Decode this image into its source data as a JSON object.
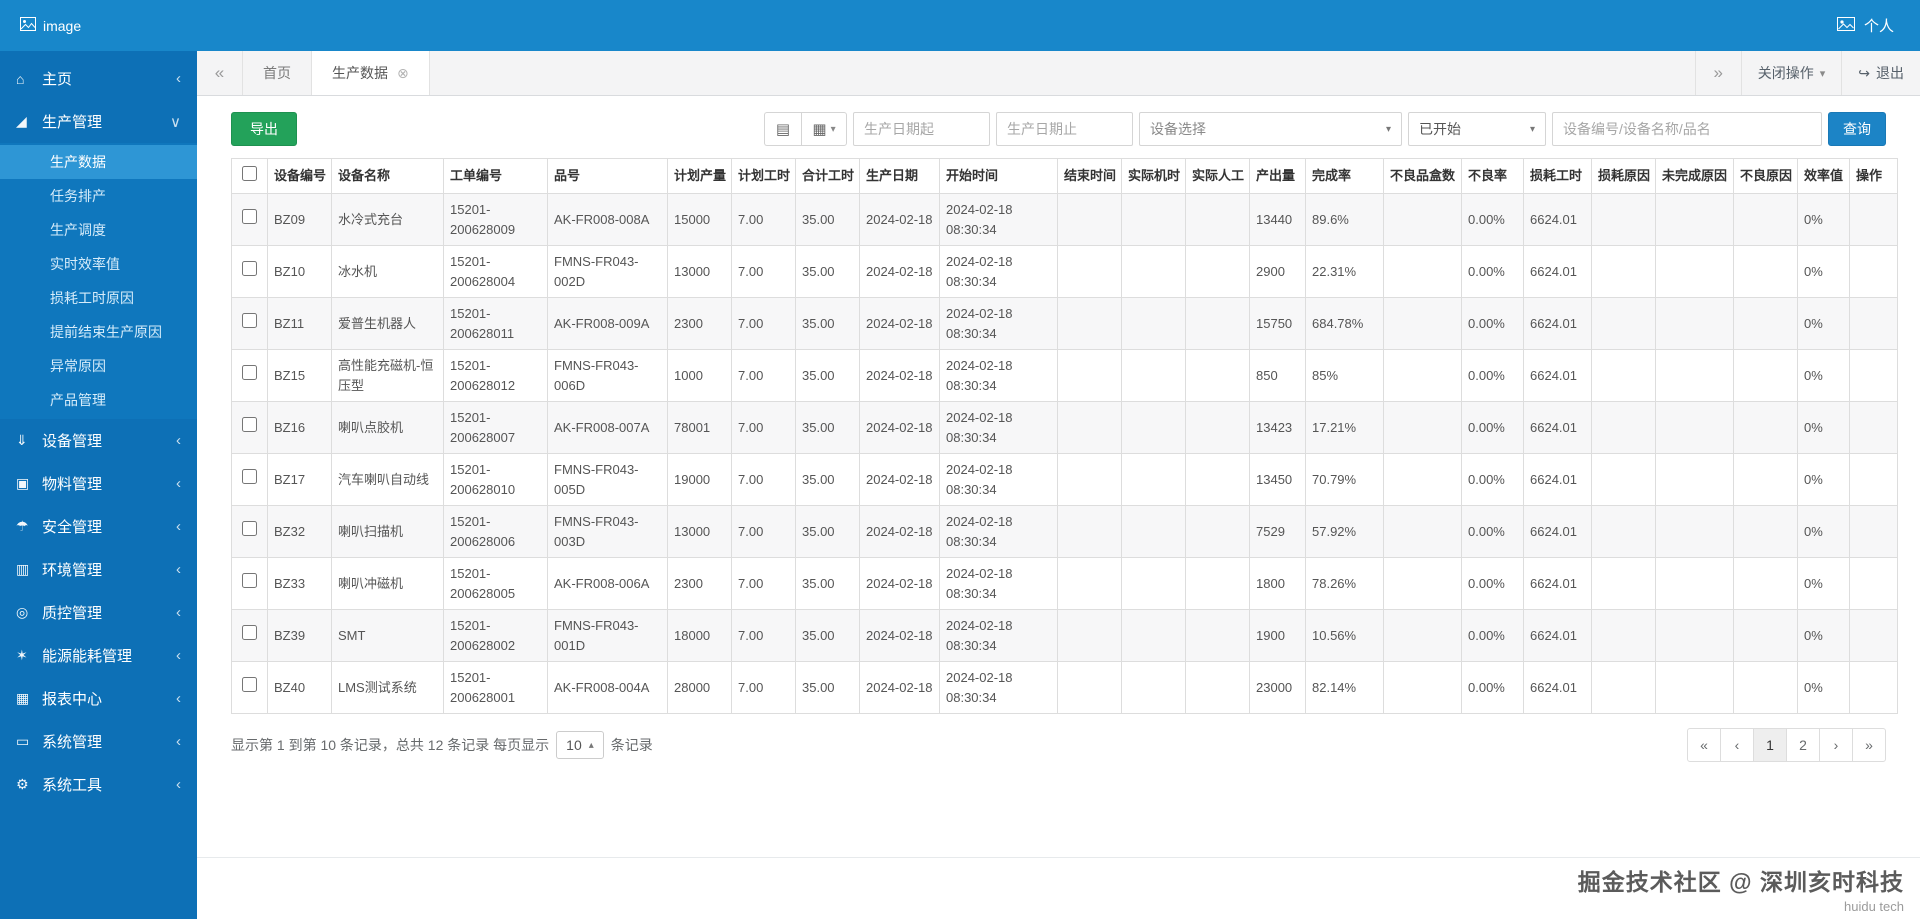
{
  "topbar": {
    "logo_alt": "image",
    "user_label": "个人"
  },
  "tabbar": {
    "back_glyph": "«",
    "forward_glyph": "»",
    "tabs": [
      {
        "key": "home",
        "label": "首页",
        "active": false,
        "closable": false
      },
      {
        "key": "production-data",
        "label": "生产数据",
        "active": true,
        "closable": true,
        "close_glyph": "⊗"
      }
    ],
    "close_menu_label": "关闭操作",
    "close_menu_caret": "▾",
    "exit_glyph": "↪",
    "exit_label": "退出"
  },
  "sidebar": {
    "collapsed_caret": "‹",
    "expanded_caret": "∨",
    "items": [
      {
        "key": "home",
        "icon": "home-icon",
        "label": "主页",
        "expanded": false
      },
      {
        "key": "production",
        "icon": "production-chart-icon",
        "label": "生产管理",
        "expanded": true,
        "active_child": "生产数据",
        "children": [
          "生产数据",
          "任务排产",
          "生产调度",
          "实时效率值",
          "损耗工时原因",
          "提前结束生产原因",
          "异常原因",
          "产品管理"
        ]
      },
      {
        "key": "equipment",
        "icon": "equipment-icon",
        "label": "设备管理",
        "expanded": false
      },
      {
        "key": "material",
        "icon": "material-icon",
        "label": "物料管理",
        "expanded": false
      },
      {
        "key": "safety",
        "icon": "safety-icon",
        "label": "安全管理",
        "expanded": false
      },
      {
        "key": "environment",
        "icon": "environment-icon",
        "label": "环境管理",
        "expanded": false
      },
      {
        "key": "quality",
        "icon": "quality-icon",
        "label": "质控管理",
        "expanded": false
      },
      {
        "key": "energy",
        "icon": "energy-icon",
        "label": "能源能耗管理",
        "expanded": false
      },
      {
        "key": "reports",
        "icon": "report-icon",
        "label": "报表中心",
        "expanded": false
      },
      {
        "key": "system",
        "icon": "system-icon",
        "label": "系统管理",
        "expanded": false
      },
      {
        "key": "tools",
        "icon": "tools-icon",
        "label": "系统工具",
        "expanded": false
      }
    ]
  },
  "toolbar": {
    "export_label": "导出",
    "list_view_glyph": "▤",
    "grid_view_glyph": "▦",
    "grid_view_caret": "▾",
    "date_start_placeholder": "生产日期起",
    "date_end_placeholder": "生产日期止",
    "device_select_value": "设备选择",
    "status_select_value": "已开始",
    "select_caret": "▾",
    "search_placeholder": "设备编号/设备名称/品名",
    "query_label": "查询"
  },
  "table": {
    "columns": [
      "设备编号",
      "设备名称",
      "工单编号",
      "品号",
      "计划产量",
      "计划工时",
      "合计工时",
      "生产日期",
      "开始时间",
      "结束时间",
      "实际机时",
      "实际人工",
      "产出量",
      "完成率",
      "不良品盒数",
      "不良率",
      "损耗工时",
      "损耗原因",
      "未完成原因",
      "不良原因",
      "效率值",
      "操作"
    ],
    "rows": [
      [
        "BZ09",
        "水冷式充台",
        "15201-200628009",
        "AK-FR008-008A",
        "15000",
        "7.00",
        "35.00",
        "2024-02-18",
        "2024-02-18 08:30:34",
        "",
        "",
        "",
        "13440",
        "89.6%",
        "",
        "0.00%",
        "6624.01",
        "",
        "",
        "",
        "0%",
        ""
      ],
      [
        "BZ10",
        "冰水机",
        "15201-200628004",
        "FMNS-FR043-002D",
        "13000",
        "7.00",
        "35.00",
        "2024-02-18",
        "2024-02-18 08:30:34",
        "",
        "",
        "",
        "2900",
        "22.31%",
        "",
        "0.00%",
        "6624.01",
        "",
        "",
        "",
        "0%",
        ""
      ],
      [
        "BZ11",
        "爱普生机器人",
        "15201-200628011",
        "AK-FR008-009A",
        "2300",
        "7.00",
        "35.00",
        "2024-02-18",
        "2024-02-18 08:30:34",
        "",
        "",
        "",
        "15750",
        "684.78%",
        "",
        "0.00%",
        "6624.01",
        "",
        "",
        "",
        "0%",
        ""
      ],
      [
        "BZ15",
        "高性能充磁机-恒压型",
        "15201-200628012",
        "FMNS-FR043-006D",
        "1000",
        "7.00",
        "35.00",
        "2024-02-18",
        "2024-02-18 08:30:34",
        "",
        "",
        "",
        "850",
        "85%",
        "",
        "0.00%",
        "6624.01",
        "",
        "",
        "",
        "0%",
        ""
      ],
      [
        "BZ16",
        "喇叭点胶机",
        "15201-200628007",
        "AK-FR008-007A",
        "78001",
        "7.00",
        "35.00",
        "2024-02-18",
        "2024-02-18 08:30:34",
        "",
        "",
        "",
        "13423",
        "17.21%",
        "",
        "0.00%",
        "6624.01",
        "",
        "",
        "",
        "0%",
        ""
      ],
      [
        "BZ17",
        "汽车喇叭自动线",
        "15201-200628010",
        "FMNS-FR043-005D",
        "19000",
        "7.00",
        "35.00",
        "2024-02-18",
        "2024-02-18 08:30:34",
        "",
        "",
        "",
        "13450",
        "70.79%",
        "",
        "0.00%",
        "6624.01",
        "",
        "",
        "",
        "0%",
        ""
      ],
      [
        "BZ32",
        "喇叭扫描机",
        "15201-200628006",
        "FMNS-FR043-003D",
        "13000",
        "7.00",
        "35.00",
        "2024-02-18",
        "2024-02-18 08:30:34",
        "",
        "",
        "",
        "7529",
        "57.92%",
        "",
        "0.00%",
        "6624.01",
        "",
        "",
        "",
        "0%",
        ""
      ],
      [
        "BZ33",
        "喇叭冲磁机",
        "15201-200628005",
        "AK-FR008-006A",
        "2300",
        "7.00",
        "35.00",
        "2024-02-18",
        "2024-02-18 08:30:34",
        "",
        "",
        "",
        "1800",
        "78.26%",
        "",
        "0.00%",
        "6624.01",
        "",
        "",
        "",
        "0%",
        ""
      ],
      [
        "BZ39",
        "SMT",
        "15201-200628002",
        "FMNS-FR043-001D",
        "18000",
        "7.00",
        "35.00",
        "2024-02-18",
        "2024-02-18 08:30:34",
        "",
        "",
        "",
        "1900",
        "10.56%",
        "",
        "0.00%",
        "6624.01",
        "",
        "",
        "",
        "0%",
        ""
      ],
      [
        "BZ40",
        "LMS测试系统",
        "15201-200628001",
        "AK-FR008-004A",
        "28000",
        "7.00",
        "35.00",
        "2024-02-18",
        "2024-02-18 08:30:34",
        "",
        "",
        "",
        "23000",
        "82.14%",
        "",
        "0.00%",
        "6624.01",
        "",
        "",
        "",
        "0%",
        ""
      ]
    ]
  },
  "footer": {
    "summary_prefix": "显示第 1 到第 10 条记录，总共 12 条记录 每页显示",
    "page_size": "10",
    "page_size_caret": "▴",
    "summary_suffix": "条记录",
    "pagination": {
      "active": "1",
      "items": [
        "«",
        "‹",
        "1",
        "2",
        "›",
        "»"
      ]
    }
  },
  "watermark": {
    "line1": "掘金技术社区 @ 深圳亥时科技",
    "line2": "huidu tech"
  },
  "colors": {
    "topbar": "#1887ca",
    "sidebar": "#0d70b6",
    "submenu_active": "#2e96d5",
    "export_button": "#23a25a",
    "query_button": "#1c84c6"
  }
}
